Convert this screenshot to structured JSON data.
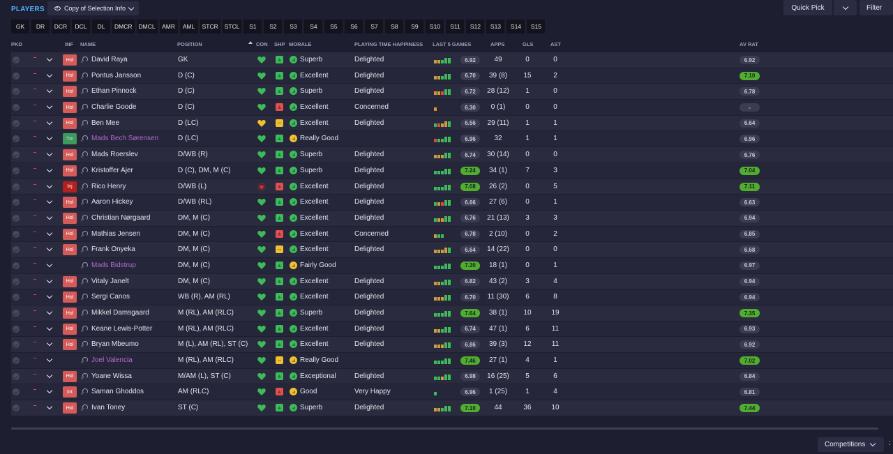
{
  "header": {
    "title": "PLAYERS",
    "view_label": "Copy of Selection Info",
    "quick_pick": "Quick Pick",
    "filter": "Filter",
    "eye_icon": "eye-icon"
  },
  "positions": [
    "GK",
    "DR",
    "DCR",
    "DCL",
    "DL",
    "DMCR",
    "DMCL",
    "AMR",
    "AML",
    "STCR",
    "STCL",
    "S1",
    "S2",
    "S3",
    "S4",
    "S5",
    "S6",
    "S7",
    "S8",
    "S9",
    "S10",
    "S11",
    "S12",
    "S13",
    "S14",
    "S15"
  ],
  "columns": {
    "pkd": "PKD",
    "inf": "INF",
    "name": "NAME",
    "position": "POSITION",
    "con": "CON",
    "shp": "SHP",
    "morale": "MORALE",
    "pth": "PLAYING TIME HAPPINESS",
    "last5": "LAST 5 GAMES",
    "apps": "APPS",
    "gls": "GLS",
    "ast": "AST",
    "avrat": "AV RAT"
  },
  "players": [
    {
      "inf": "Hol",
      "inf_type": "hol",
      "name": "David Raya",
      "loan": false,
      "pos": "GK",
      "con": "g",
      "shp": "g",
      "morale_icon": "g",
      "morale": "Superb",
      "pth": "Delighted",
      "bars": "yyggg",
      "last5": "6.92",
      "last5_hi": false,
      "apps": "49",
      "gls": "0",
      "ast": "0",
      "av": "6.92",
      "av_hi": false
    },
    {
      "inf": "Hol",
      "inf_type": "hol",
      "name": "Pontus Jansson",
      "loan": false,
      "pos": "D (C)",
      "con": "g",
      "shp": "g",
      "morale_icon": "g",
      "morale": "Excellent",
      "pth": "Delighted",
      "bars": "yyggg",
      "last5": "6.70",
      "last5_hi": false,
      "apps": "39 (8)",
      "gls": "15",
      "ast": "2",
      "av": "7.10",
      "av_hi": true
    },
    {
      "inf": "Hol",
      "inf_type": "hol",
      "name": "Ethan Pinnock",
      "loan": false,
      "pos": "D (C)",
      "con": "g",
      "shp": "g",
      "morale_icon": "g",
      "morale": "Superb",
      "pth": "Delighted",
      "bars": "oyrgg",
      "last5": "6.72",
      "last5_hi": false,
      "apps": "28 (12)",
      "gls": "1",
      "ast": "0",
      "av": "6.78",
      "av_hi": false
    },
    {
      "inf": "Hol",
      "inf_type": "hol",
      "name": "Charlie Goode",
      "loan": false,
      "pos": "D (C)",
      "con": "g",
      "shp": "r",
      "morale_icon": "g",
      "morale": "Excellent",
      "pth": "Concerned",
      "bars": "o",
      "last5": "6.30",
      "last5_hi": false,
      "apps": "0 (1)",
      "gls": "0",
      "ast": "0",
      "av": "-",
      "av_hi": false
    },
    {
      "inf": "Hol",
      "inf_type": "hol",
      "name": "Ben Mee",
      "loan": false,
      "pos": "D (LC)",
      "con": "y",
      "shp": "y",
      "morale_icon": "g",
      "morale": "Excellent",
      "pth": "Delighted",
      "bars": "gryyg",
      "last5": "6.56",
      "last5_hi": false,
      "apps": "29 (11)",
      "gls": "1",
      "ast": "1",
      "av": "6.64",
      "av_hi": false
    },
    {
      "inf": "Tm",
      "inf_type": "tm",
      "name": "Mads Bech Sørensen",
      "loan": true,
      "pos": "D (LC)",
      "con": "g",
      "shp": "g",
      "morale_icon": "y",
      "morale": "Really Good",
      "pth": "",
      "bars": "rgggg",
      "last5": "6.96",
      "last5_hi": false,
      "apps": "32",
      "gls": "1",
      "ast": "1",
      "av": "6.96",
      "av_hi": false
    },
    {
      "inf": "Hol",
      "inf_type": "hol",
      "name": "Mads Roerslev",
      "loan": false,
      "pos": "D/WB (R)",
      "con": "g",
      "shp": "g",
      "morale_icon": "g",
      "morale": "Superb",
      "pth": "Delighted",
      "bars": "yyygg",
      "last5": "6.74",
      "last5_hi": false,
      "apps": "30 (14)",
      "gls": "0",
      "ast": "0",
      "av": "6.76",
      "av_hi": false
    },
    {
      "inf": "Hol",
      "inf_type": "hol",
      "name": "Kristoffer Ajer",
      "loan": false,
      "pos": "D (C), DM, M (C)",
      "con": "g",
      "shp": "g",
      "morale_icon": "g",
      "morale": "Superb",
      "pth": "Delighted",
      "bars": "ggggg",
      "last5": "7.24",
      "last5_hi": true,
      "apps": "34 (1)",
      "gls": "7",
      "ast": "3",
      "av": "7.04",
      "av_hi": true
    },
    {
      "inf": "Inj",
      "inf_type": "inj",
      "name": "Rico Henry",
      "loan": false,
      "pos": "D/WB (L)",
      "con": "r",
      "shp": "r",
      "morale_icon": "g",
      "morale": "Excellent",
      "pth": "Delighted",
      "bars": "ggggg",
      "last5": "7.08",
      "last5_hi": true,
      "apps": "26 (2)",
      "gls": "0",
      "ast": "5",
      "av": "7.11",
      "av_hi": true
    },
    {
      "inf": "Hol",
      "inf_type": "hol",
      "name": "Aaron Hickey",
      "loan": false,
      "pos": "D/WB (RL)",
      "con": "g",
      "shp": "g",
      "morale_icon": "g",
      "morale": "Excellent",
      "pth": "Delighted",
      "bars": "gyrgg",
      "last5": "6.66",
      "last5_hi": false,
      "apps": "27 (6)",
      "gls": "0",
      "ast": "1",
      "av": "6.63",
      "av_hi": false
    },
    {
      "inf": "Hol",
      "inf_type": "hol",
      "name": "Christian Nørgaard",
      "loan": false,
      "pos": "DM, M (C)",
      "con": "g",
      "shp": "g",
      "morale_icon": "g",
      "morale": "Excellent",
      "pth": "Delighted",
      "bars": "gyygg",
      "last5": "6.76",
      "last5_hi": false,
      "apps": "21 (13)",
      "gls": "3",
      "ast": "3",
      "av": "6.94",
      "av_hi": false
    },
    {
      "inf": "Hol",
      "inf_type": "hol",
      "name": "Mathias Jensen",
      "loan": false,
      "pos": "DM, M (C)",
      "con": "g",
      "shp": "r",
      "morale_icon": "g",
      "morale": "Excellent",
      "pth": "Concerned",
      "bars": "ygg",
      "last5": "6.78",
      "last5_hi": false,
      "apps": "2 (10)",
      "gls": "0",
      "ast": "2",
      "av": "6.85",
      "av_hi": false
    },
    {
      "inf": "Hol",
      "inf_type": "hol",
      "name": "Frank Onyeka",
      "loan": false,
      "pos": "DM, M (C)",
      "con": "g",
      "shp": "y",
      "morale_icon": "g",
      "morale": "Excellent",
      "pth": "Delighted",
      "bars": "yyyyg",
      "last5": "6.64",
      "last5_hi": false,
      "apps": "14 (22)",
      "gls": "0",
      "ast": "0",
      "av": "6.68",
      "av_hi": false
    },
    {
      "inf": "",
      "inf_type": "none",
      "name": "Mads Bidstrup",
      "loan": true,
      "pos": "DM, M (C)",
      "con": "g",
      "shp": "g",
      "morale_icon": "y",
      "morale": "Fairly Good",
      "pth": "",
      "bars": "ggggg",
      "last5": "7.30",
      "last5_hi": true,
      "apps": "18 (1)",
      "gls": "0",
      "ast": "1",
      "av": "6.97",
      "av_hi": false
    },
    {
      "inf": "Hol",
      "inf_type": "hol",
      "name": "Vitaly Janelt",
      "loan": false,
      "pos": "DM, M (C)",
      "con": "g",
      "shp": "g",
      "morale_icon": "g",
      "morale": "Excellent",
      "pth": "Delighted",
      "bars": "yyggg",
      "last5": "6.82",
      "last5_hi": false,
      "apps": "43 (2)",
      "gls": "3",
      "ast": "4",
      "av": "6.94",
      "av_hi": false
    },
    {
      "inf": "Hol",
      "inf_type": "hol",
      "name": "Sergi Canos",
      "loan": false,
      "pos": "WB (R), AM (RL)",
      "con": "g",
      "shp": "g",
      "morale_icon": "g",
      "morale": "Excellent",
      "pth": "Delighted",
      "bars": "yyygg",
      "last5": "6.70",
      "last5_hi": false,
      "apps": "11 (30)",
      "gls": "6",
      "ast": "8",
      "av": "6.94",
      "av_hi": false
    },
    {
      "inf": "Hol",
      "inf_type": "hol",
      "name": "Mikkel Damsgaard",
      "loan": false,
      "pos": "M (RL), AM (RLC)",
      "con": "g",
      "shp": "g",
      "morale_icon": "g",
      "morale": "Superb",
      "pth": "Delighted",
      "bars": "ggggg",
      "last5": "7.64",
      "last5_hi": true,
      "apps": "38 (1)",
      "gls": "10",
      "ast": "19",
      "av": "7.35",
      "av_hi": true
    },
    {
      "inf": "Hol",
      "inf_type": "hol",
      "name": "Keane Lewis-Potter",
      "loan": false,
      "pos": "M (RL), AM (RLC)",
      "con": "g",
      "shp": "g",
      "morale_icon": "g",
      "morale": "Excellent",
      "pth": "Delighted",
      "bars": "yyggg",
      "last5": "6.74",
      "last5_hi": false,
      "apps": "47 (1)",
      "gls": "6",
      "ast": "11",
      "av": "6.93",
      "av_hi": false
    },
    {
      "inf": "Hol",
      "inf_type": "hol",
      "name": "Bryan Mbeumo",
      "loan": false,
      "pos": "M (L), AM (RL), ST (C)",
      "con": "g",
      "shp": "g",
      "morale_icon": "g",
      "morale": "Excellent",
      "pth": "Delighted",
      "bars": "yyygg",
      "last5": "6.86",
      "last5_hi": false,
      "apps": "39 (3)",
      "gls": "12",
      "ast": "11",
      "av": "6.92",
      "av_hi": false
    },
    {
      "inf": "",
      "inf_type": "none",
      "name": "Joel Valencia",
      "loan": true,
      "pos": "M (RL), AM (RLC)",
      "con": "g",
      "shp": "y",
      "morale_icon": "y",
      "morale": "Really Good",
      "pth": "",
      "bars": "ggggg",
      "last5": "7.46",
      "last5_hi": true,
      "apps": "27 (1)",
      "gls": "4",
      "ast": "1",
      "av": "7.02",
      "av_hi": true
    },
    {
      "inf": "Hol",
      "inf_type": "hol",
      "name": "Yoane Wissa",
      "loan": false,
      "pos": "M/AM (L), ST (C)",
      "con": "g",
      "shp": "g",
      "morale_icon": "g",
      "morale": "Exceptional",
      "pth": "Delighted",
      "bars": "ggygg",
      "last5": "6.98",
      "last5_hi": false,
      "apps": "16 (25)",
      "gls": "5",
      "ast": "6",
      "av": "6.84",
      "av_hi": false
    },
    {
      "inf": "Int",
      "inf_type": "int",
      "name": "Saman Ghoddos",
      "loan": false,
      "pos": "AM (RLC)",
      "con": "g",
      "shp": "r",
      "morale_icon": "y",
      "morale": "Good",
      "pth": "Very Happy",
      "bars": "g",
      "last5": "6.96",
      "last5_hi": false,
      "apps": "1 (25)",
      "gls": "1",
      "ast": "4",
      "av": "6.81",
      "av_hi": false
    },
    {
      "inf": "Hol",
      "inf_type": "hol",
      "name": "Ivan Toney",
      "loan": false,
      "pos": "ST (C)",
      "con": "g",
      "shp": "g",
      "morale_icon": "g",
      "morale": "Superb",
      "pth": "Delighted",
      "bars": "yyggg",
      "last5": "7.10",
      "last5_hi": true,
      "apps": "44",
      "gls": "36",
      "ast": "10",
      "av": "7.44",
      "av_hi": true
    }
  ],
  "footer": {
    "competitions": "Competitions",
    "edge": ":"
  },
  "colors": {
    "accent": "#4fb3ff",
    "positive": "#4fae2c",
    "loan_name": "#b56ad0",
    "hol": "#d55b5b",
    "inj": "#b4201e",
    "tm": "#3e9a5c"
  }
}
